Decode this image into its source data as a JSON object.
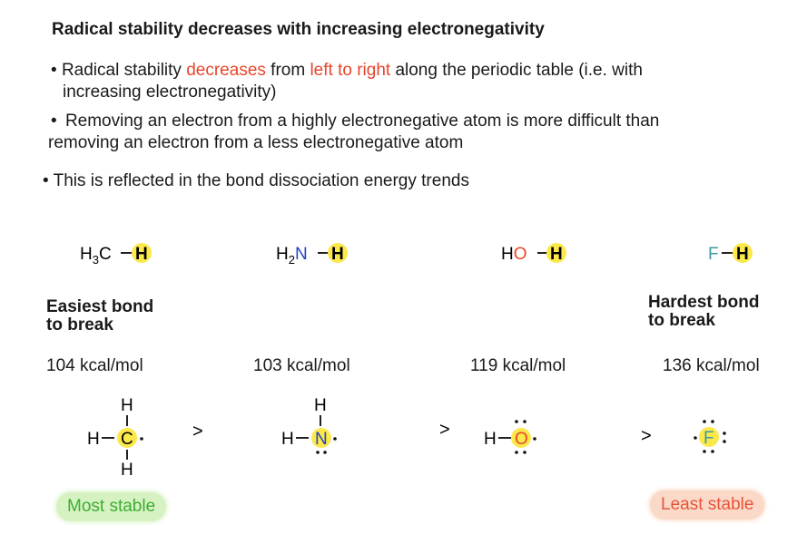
{
  "title": "Radical stability decreases with increasing electronegativity",
  "bullets": {
    "b1_pre": "Radical stability ",
    "b1_decreases": "decreases",
    "b1_mid": " from ",
    "b1_ltr": "left to right",
    "b1_post": " along the periodic table (i.e. with",
    "b1_line2": "increasing electronegativity)",
    "b2_line1": "Removing an electron from a highly electronegative atom is more difficult than",
    "b2_line2": "removing an electron from a less electronegative atom",
    "b3": "This is reflected in the bond dissociation energy trends"
  },
  "bullet_symbol": "•",
  "molecules": [
    {
      "left": "H",
      "sub": "3",
      "atom": "C",
      "h": "H"
    },
    {
      "left": "H",
      "sub": "2",
      "atom": "N",
      "h": "H"
    },
    {
      "left": "H",
      "atom": "O",
      "h": "H"
    },
    {
      "atom": "F",
      "h": "H"
    }
  ],
  "labels": {
    "easiest_l1": "Easiest bond",
    "easiest_l2": "to break",
    "hardest_l1": "Hardest bond",
    "hardest_l2": "to break"
  },
  "energies": [
    "104 kcal/mol",
    "103 kcal/mol",
    "119 kcal/mol",
    "136 kcal/mol"
  ],
  "radicals": {
    "h": "H",
    "c": "C",
    "n": "N",
    "o": "O",
    "f": "F",
    "gt": ">"
  },
  "stability": {
    "most": "Most stable",
    "least": "Least stable"
  },
  "colors": {
    "highlight": "#fbe84a",
    "red": "#e8452c",
    "blue": "#2540c8",
    "teal": "#3a9aa0"
  }
}
